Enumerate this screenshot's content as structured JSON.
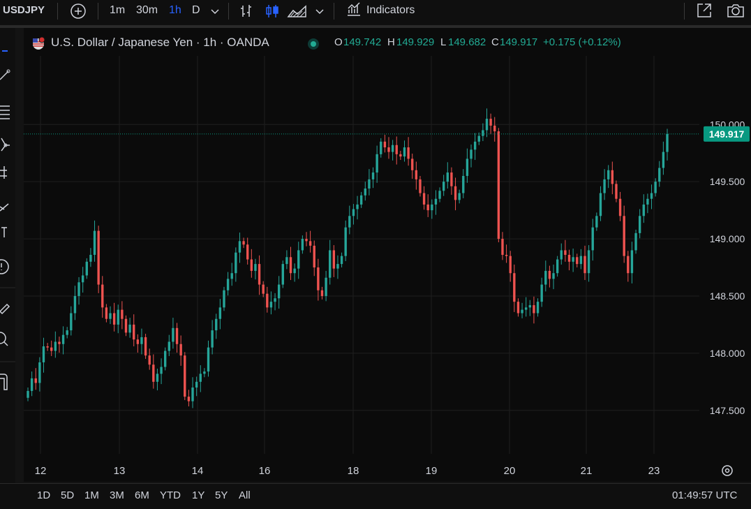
{
  "toolbar": {
    "symbol": "USDJPY",
    "intervals": [
      "1m",
      "30m",
      "1h",
      "D"
    ],
    "active_interval": "1h",
    "indicators_label": "Indicators"
  },
  "legend": {
    "title": "U.S. Dollar / Japanese Yen · 1h · OANDA",
    "o_label": "O",
    "o_value": "149.742",
    "h_label": "H",
    "h_value": "149.929",
    "l_label": "L",
    "l_value": "149.682",
    "c_label": "C",
    "c_value": "149.917",
    "change": "+0.175 (+0.12%)"
  },
  "bottombar": {
    "ranges": [
      "1D",
      "5D",
      "1M",
      "3M",
      "6M",
      "YTD",
      "1Y",
      "5Y",
      "All"
    ],
    "clock": "01:49:57 UTC"
  },
  "colors": {
    "up": "#26a69a",
    "down": "#ef5350",
    "grid": "#1f1f1f",
    "price_badge": "#089981"
  },
  "chart_data": {
    "type": "candlestick",
    "symbol": "USDJPY",
    "interval": "1h",
    "y_ticks": [
      147.5,
      148.0,
      148.5,
      149.0,
      149.5,
      150.0
    ],
    "y_tick_labels": [
      "147.500",
      "148.000",
      "148.500",
      "149.000",
      "149.500",
      "150.000"
    ],
    "ylim": [
      147.12,
      150.6
    ],
    "x_tick_labels": [
      "12",
      "13",
      "14",
      "16",
      "18",
      "19",
      "20",
      "21",
      "23"
    ],
    "last_price": 149.917,
    "last_price_label": "149.917",
    "grid": true,
    "closes": [
      147.67,
      147.78,
      147.74,
      147.92,
      148.06,
      148.05,
      148.02,
      148.1,
      148.08,
      148.16,
      148.2,
      148.35,
      148.5,
      148.62,
      148.68,
      148.8,
      148.86,
      149.07,
      148.6,
      148.4,
      148.3,
      148.35,
      148.25,
      148.38,
      148.3,
      148.18,
      148.25,
      148.12,
      148.08,
      148.14,
      147.98,
      147.9,
      147.75,
      147.82,
      147.88,
      148.02,
      148.1,
      148.22,
      148.08,
      147.98,
      147.62,
      147.58,
      147.7,
      147.75,
      147.82,
      147.84,
      148.05,
      148.2,
      148.3,
      148.4,
      148.55,
      148.65,
      148.7,
      148.88,
      148.98,
      148.95,
      148.82,
      148.72,
      148.78,
      148.6,
      148.52,
      148.4,
      148.45,
      148.48,
      148.6,
      148.78,
      148.84,
      148.7,
      148.74,
      148.9,
      149.0,
      148.98,
      148.94,
      148.75,
      148.55,
      148.5,
      148.66,
      148.9,
      148.74,
      148.78,
      148.85,
      149.1,
      149.2,
      149.26,
      149.3,
      149.38,
      149.44,
      149.52,
      149.58,
      149.74,
      149.85,
      149.8,
      149.76,
      149.82,
      149.74,
      149.72,
      149.8,
      149.7,
      149.6,
      149.52,
      149.4,
      149.3,
      149.25,
      149.3,
      149.35,
      149.42,
      149.5,
      149.58,
      149.46,
      149.34,
      149.4,
      149.55,
      149.7,
      149.78,
      149.85,
      149.9,
      149.95,
      150.05,
      149.99,
      149.94,
      149.0,
      148.86,
      148.85,
      148.7,
      148.45,
      148.35,
      148.38,
      148.4,
      148.42,
      148.35,
      148.45,
      148.6,
      148.72,
      148.65,
      148.7,
      148.82,
      148.9,
      148.86,
      148.8,
      148.84,
      148.78,
      148.85,
      148.7,
      148.9,
      149.1,
      149.2,
      149.4,
      149.52,
      149.6,
      149.48,
      149.35,
      149.2,
      148.85,
      148.7,
      148.9,
      149.05,
      149.2,
      149.3,
      149.35,
      149.4,
      149.5,
      149.62,
      149.76,
      149.917
    ]
  }
}
